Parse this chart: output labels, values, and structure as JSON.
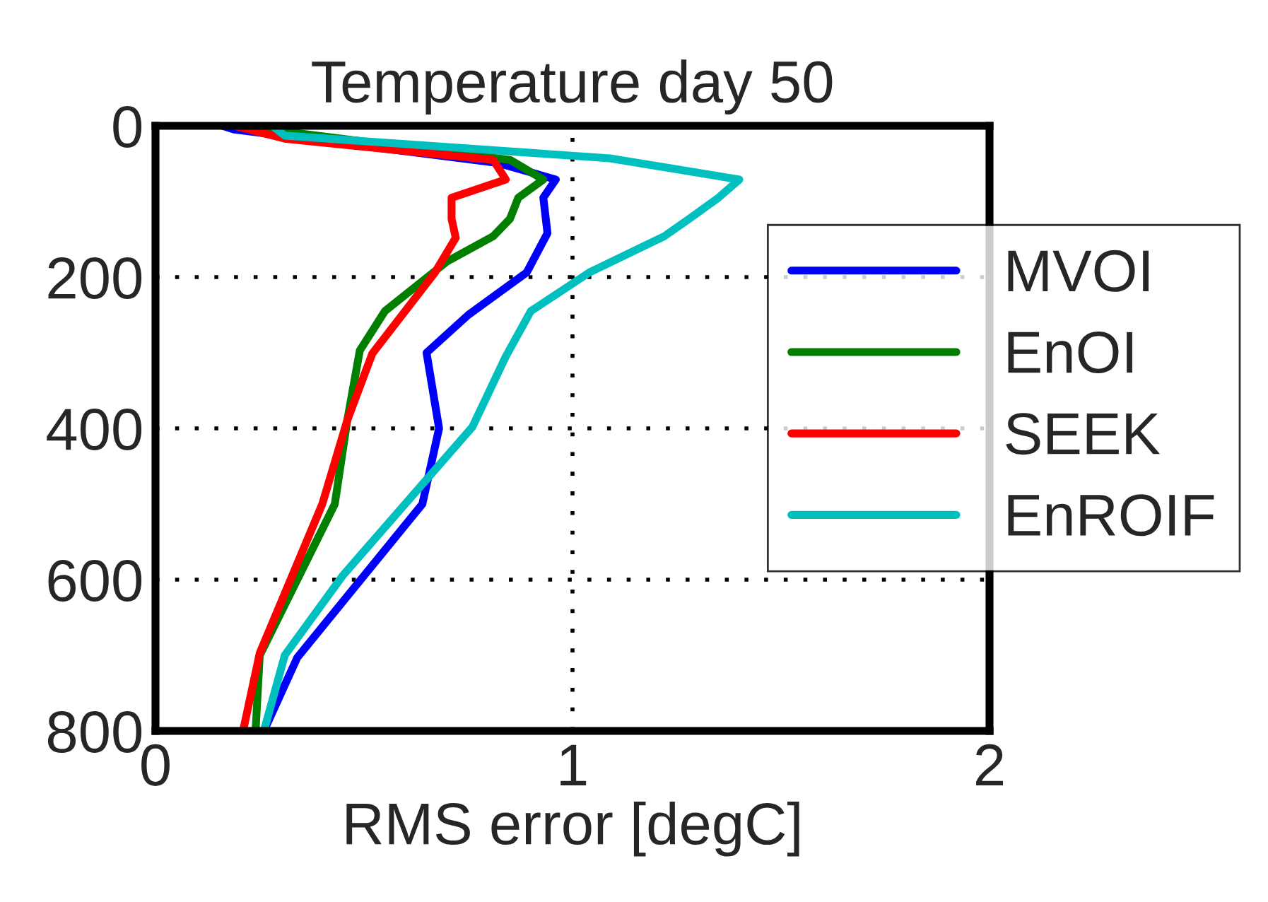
{
  "chart_data": {
    "type": "line",
    "title": "Temperature day 50",
    "xlabel": "RMS error [degC]",
    "xlim": [
      0,
      2
    ],
    "xticks": [
      0,
      1,
      2
    ],
    "ylim": [
      800,
      0
    ],
    "yticks": [
      0,
      200,
      400,
      600,
      800
    ],
    "grid": true,
    "legend": "right",
    "line_style": "solid",
    "marker": "none",
    "series": [
      {
        "name": "MVOI",
        "color": "#0000ff",
        "x": [
          0.16,
          0.19,
          0.82,
          0.96,
          0.93,
          0.94,
          0.89,
          0.75,
          0.65,
          0.68,
          0.64,
          0.34,
          0.26
        ],
        "values": [
          0,
          5,
          49,
          71,
          95,
          142,
          194,
          250,
          300,
          400,
          500,
          703,
          800
        ]
      },
      {
        "name": "EnOI",
        "color": "#007f00",
        "x": [
          0.2,
          0.85,
          0.93,
          0.87,
          0.85,
          0.81,
          0.7,
          0.55,
          0.49,
          0.46,
          0.43,
          0.25,
          0.24
        ],
        "values": [
          0,
          45,
          71,
          95,
          123,
          146,
          179,
          245,
          297,
          389,
          500,
          700,
          800
        ]
      },
      {
        "name": "SEEK",
        "color": "#ff0000",
        "x": [
          0.19,
          0.31,
          0.81,
          0.84,
          0.71,
          0.71,
          0.72,
          0.67,
          0.52,
          0.46,
          0.4,
          0.25,
          0.21
        ],
        "values": [
          0,
          17,
          45,
          71,
          95,
          123,
          148,
          194,
          301,
          389,
          500,
          697,
          800
        ]
      },
      {
        "name": "EnROIF",
        "color": "#00bfbf",
        "x": [
          0.28,
          0.31,
          1.09,
          1.4,
          1.35,
          1.28,
          1.22,
          1.04,
          0.9,
          0.84,
          0.76,
          0.45,
          0.31,
          0.26
        ],
        "values": [
          0,
          13,
          43,
          71,
          95,
          123,
          146,
          194,
          245,
          305,
          398,
          594,
          700,
          800
        ]
      }
    ]
  }
}
